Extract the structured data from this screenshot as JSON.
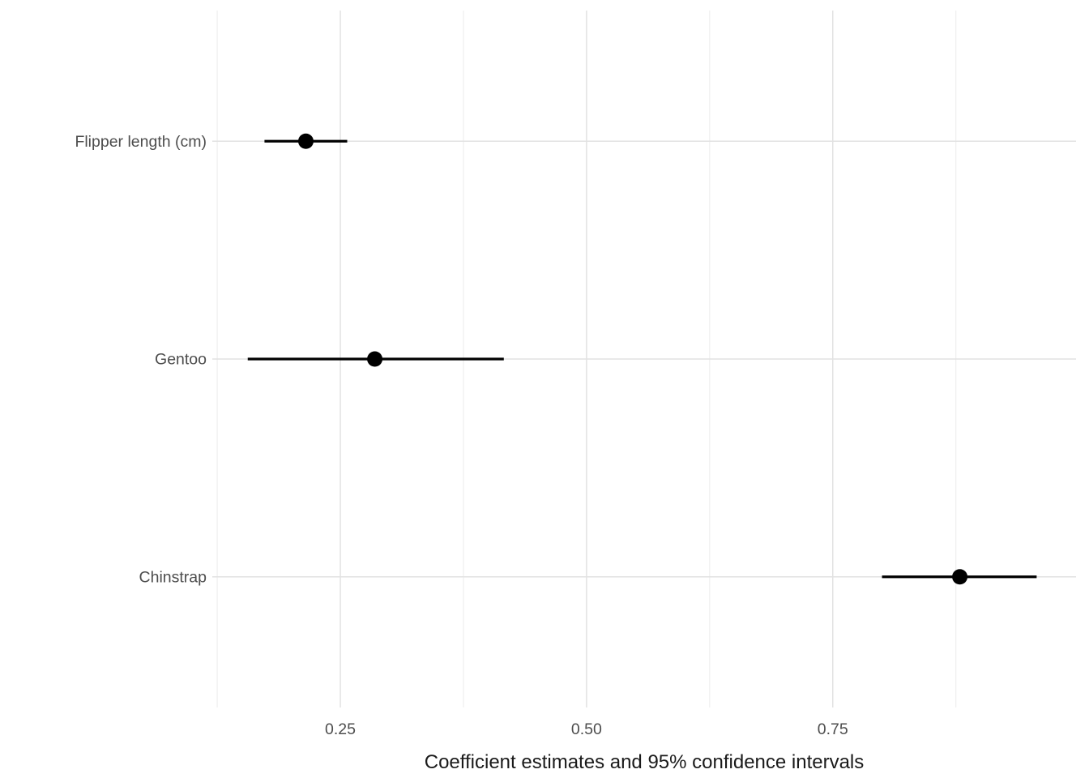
{
  "figure": {
    "background": "#ffffff"
  },
  "chart_data": {
    "type": "scatter",
    "subtype": "pointrange-coefficient-plot",
    "orientation": "horizontal",
    "title": "",
    "xlabel": "Coefficient estimates and 95% confidence intervals",
    "ylabel": "",
    "categories": [
      "Flipper length (cm)",
      "Gentoo",
      "Chinstrap"
    ],
    "series": [
      {
        "name": "Coefficient estimate with 95% CI",
        "estimates": [
          0.215,
          0.285,
          0.879
        ],
        "ci_low": [
          0.173,
          0.156,
          0.8
        ],
        "ci_high": [
          0.257,
          0.416,
          0.957
        ]
      }
    ],
    "x_axis": {
      "tick_labels": [
        "0.25",
        "0.50",
        "0.75"
      ],
      "tick_values": [
        0.25,
        0.5,
        0.75
      ],
      "minor_tick_values": [
        0.125,
        0.375,
        0.625,
        0.875
      ],
      "xlim": [
        0.12,
        0.997
      ]
    },
    "y_axis": {
      "band_padding": 0.6
    },
    "grid": true,
    "legend": false,
    "style": {
      "point_color": "#000000",
      "range_line_color": "#000000",
      "grid_major_color": "#e2e2e2",
      "grid_minor_color": "#ededed",
      "row_grid_color": "#e2e2e2",
      "axis_text_color": "#4d4d4d",
      "axis_title_color": "#1a1a1a",
      "background": "#ffffff"
    }
  }
}
